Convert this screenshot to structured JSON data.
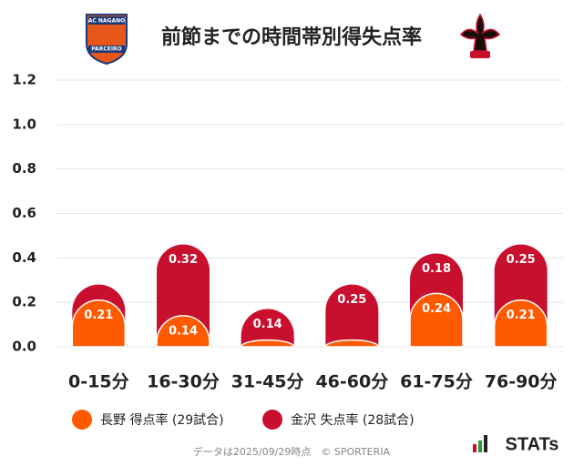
{
  "chart_data": {
    "type": "stacked-bar",
    "title": "前節までの時間帯別得失点率",
    "logo_texts": [
      "AC NAGANO",
      "PARCEIRO"
    ],
    "categories": [
      "0-15分",
      "16-30分",
      "31-45分",
      "46-60分",
      "61-75分",
      "76-90分"
    ],
    "series": [
      {
        "name": "長野 得点率 (29試合)",
        "color": "#ff5a00",
        "values": [
          0.21,
          0.14,
          0.03,
          0.03,
          0.24,
          0.21
        ]
      },
      {
        "name": "金沢 失点率 (28試合)",
        "color": "#c8102e",
        "values": [
          0.07,
          0.32,
          0.14,
          0.25,
          0.18,
          0.25
        ]
      }
    ],
    "ylim": [
      0,
      1.2
    ],
    "yticks": [
      {
        "value": 0,
        "label": "0.0"
      },
      0.2,
      0.4,
      0.6,
      0.8,
      {
        "value": 1,
        "label": "1.0"
      },
      1.2
    ],
    "grid": true,
    "legend": "bottom",
    "footer": "データは2025/09/29時点　© SPORTERIA",
    "brand": "STATs"
  }
}
